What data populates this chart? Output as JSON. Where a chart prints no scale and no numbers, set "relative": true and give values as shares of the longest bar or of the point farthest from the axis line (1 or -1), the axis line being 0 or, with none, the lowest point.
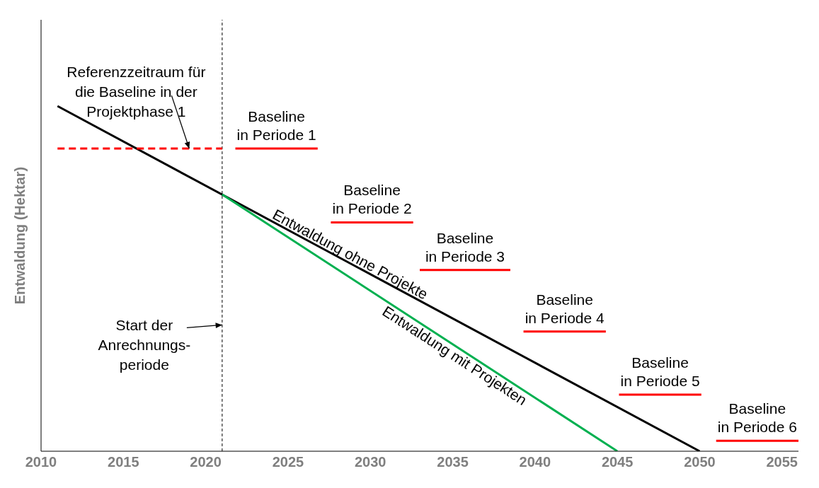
{
  "chart_data": {
    "type": "line",
    "relative": true,
    "ylabel": "Entwaldung (Hektar)",
    "xlim": [
      2010,
      2056
    ],
    "xticks": [
      2010,
      2015,
      2020,
      2025,
      2030,
      2035,
      2040,
      2045,
      2050,
      2055
    ],
    "series": [
      {
        "name": "Entwaldung ohne Projekte",
        "color": "#000000",
        "x": [
          2011,
          2050
        ],
        "values": [
          1,
          0
        ]
      },
      {
        "name": "Entwaldung mit Projekten",
        "color": "#00b050",
        "x": [
          2021,
          2045
        ],
        "values": [
          0.744,
          0
        ]
      },
      {
        "color": "#ff0000",
        "line_style": "dashed",
        "x": [
          2011,
          2021
        ],
        "values": [
          0.877,
          0.877
        ]
      },
      {
        "name": "Baseline\nin Periode 1",
        "color": "#ff0000",
        "x": [
          2021.8,
          2026.8
        ],
        "values": [
          0.877,
          0.877
        ]
      },
      {
        "name": "Baseline\nin Periode 2",
        "color": "#ff0000",
        "x": [
          2027.6,
          2032.6
        ],
        "values": [
          0.663,
          0.663
        ]
      },
      {
        "name": "Baseline\nin Periode 3",
        "color": "#ff0000",
        "x": [
          2033,
          2038.5
        ],
        "values": [
          0.525,
          0.525
        ]
      },
      {
        "name": "Baseline\nin Periode 4",
        "color": "#ff0000",
        "x": [
          2039.3,
          2044.3
        ],
        "values": [
          0.347,
          0.347
        ]
      },
      {
        "name": "Baseline\nin Periode 5",
        "color": "#ff0000",
        "x": [
          2045.1,
          2050.1
        ],
        "values": [
          0.164,
          0.164
        ]
      },
      {
        "name": "Baseline\nin Periode 6",
        "color": "#ff0000",
        "x": [
          2051,
          2056
        ],
        "values": [
          0.03,
          0.03
        ]
      }
    ],
    "ref_lines": [
      {
        "axis": "x",
        "value": 2021,
        "color": "#000000",
        "line_style": "dashed"
      }
    ],
    "annotations": [
      {
        "text": "Referenzzeitraum für\ndie Baseline in der\nProjektphase 1",
        "x": 2019,
        "y": 0.877
      },
      {
        "text": "Start der\nAnrechnungs-\nperiode",
        "x": 2021,
        "y": 0.366
      }
    ]
  }
}
